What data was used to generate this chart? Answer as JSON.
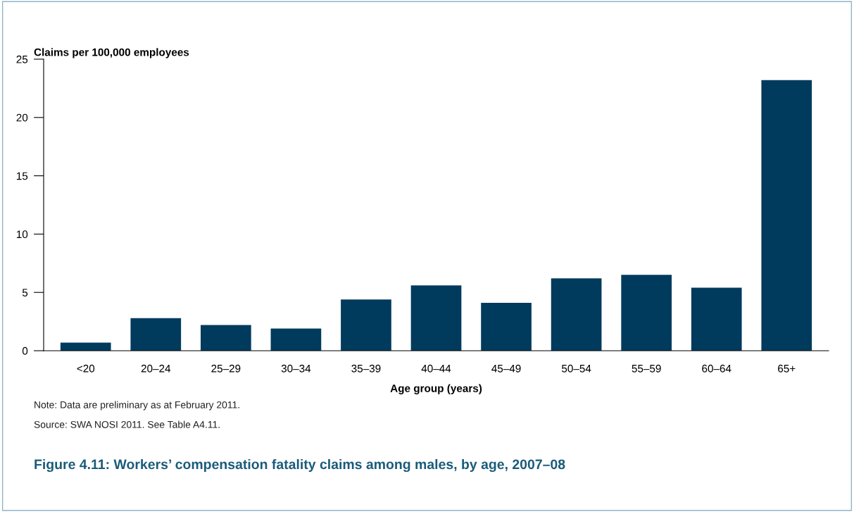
{
  "chart_data": {
    "type": "bar",
    "title": "Figure 4.11: Workers’ compensation fatality claims among males, by age, 2007–08",
    "ylabel": "Claims per 100,000 employees",
    "xlabel": "Age group (years)",
    "categories": [
      "<20",
      "20–24",
      "25–29",
      "30–34",
      "35–39",
      "40–44",
      "45–49",
      "50–54",
      "55–59",
      "60–64",
      "65+"
    ],
    "values": [
      0.7,
      2.8,
      2.2,
      1.9,
      4.4,
      5.6,
      4.1,
      6.2,
      6.5,
      5.4,
      23.2
    ],
    "color": "#003a5d",
    "ylim": [
      0,
      25
    ],
    "yticks": [
      0,
      5,
      10,
      15,
      20,
      25
    ],
    "grid": false,
    "annotations": [
      "Note: Data are preliminary as at February 2011.",
      "Source: SWA NOSI 2011. See Table A4.11."
    ]
  }
}
